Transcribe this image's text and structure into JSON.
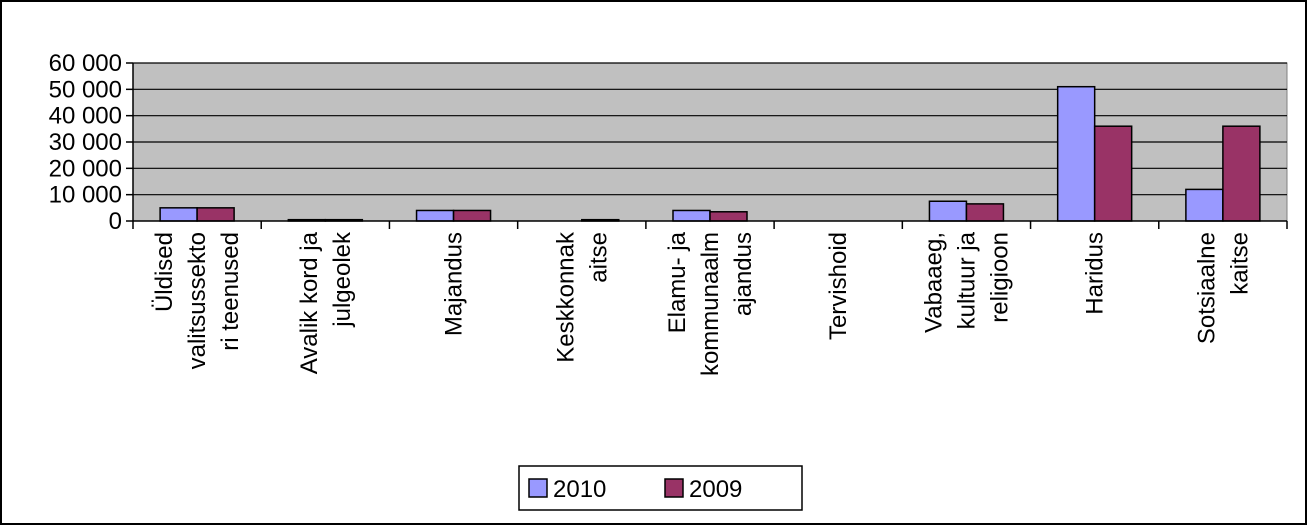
{
  "chart_data": {
    "type": "bar",
    "categories": [
      [
        "Üldised",
        "valitsussekto",
        "ri teenused"
      ],
      [
        "Avalik kord ja",
        "julgeolek"
      ],
      [
        "Majandus"
      ],
      [
        "Keskkonnak",
        "aitse"
      ],
      [
        "Elamu- ja",
        "kommunaalm",
        "ajandus"
      ],
      [
        "Tervishoid"
      ],
      [
        "Vabaaeg,",
        "kultuur ja",
        "religioon"
      ],
      [
        "Haridus"
      ],
      [
        "Sotsiaalne",
        "kaitse"
      ]
    ],
    "series": [
      {
        "name": "2010",
        "color": "#9999ff",
        "values": [
          5000,
          500,
          4000,
          0,
          4000,
          0,
          7500,
          51000,
          12000
        ]
      },
      {
        "name": "2009",
        "color": "#993366",
        "values": [
          5000,
          500,
          4000,
          500,
          3500,
          0,
          6500,
          36000,
          36000
        ]
      }
    ],
    "yticks": [
      "0",
      "10 000",
      "20 000",
      "30 000",
      "40 000",
      "50 000",
      "60 000"
    ],
    "ylim": [
      0,
      60000
    ],
    "grid": true,
    "plot_background": "#c0c0c0",
    "legend_position": "bottom"
  }
}
